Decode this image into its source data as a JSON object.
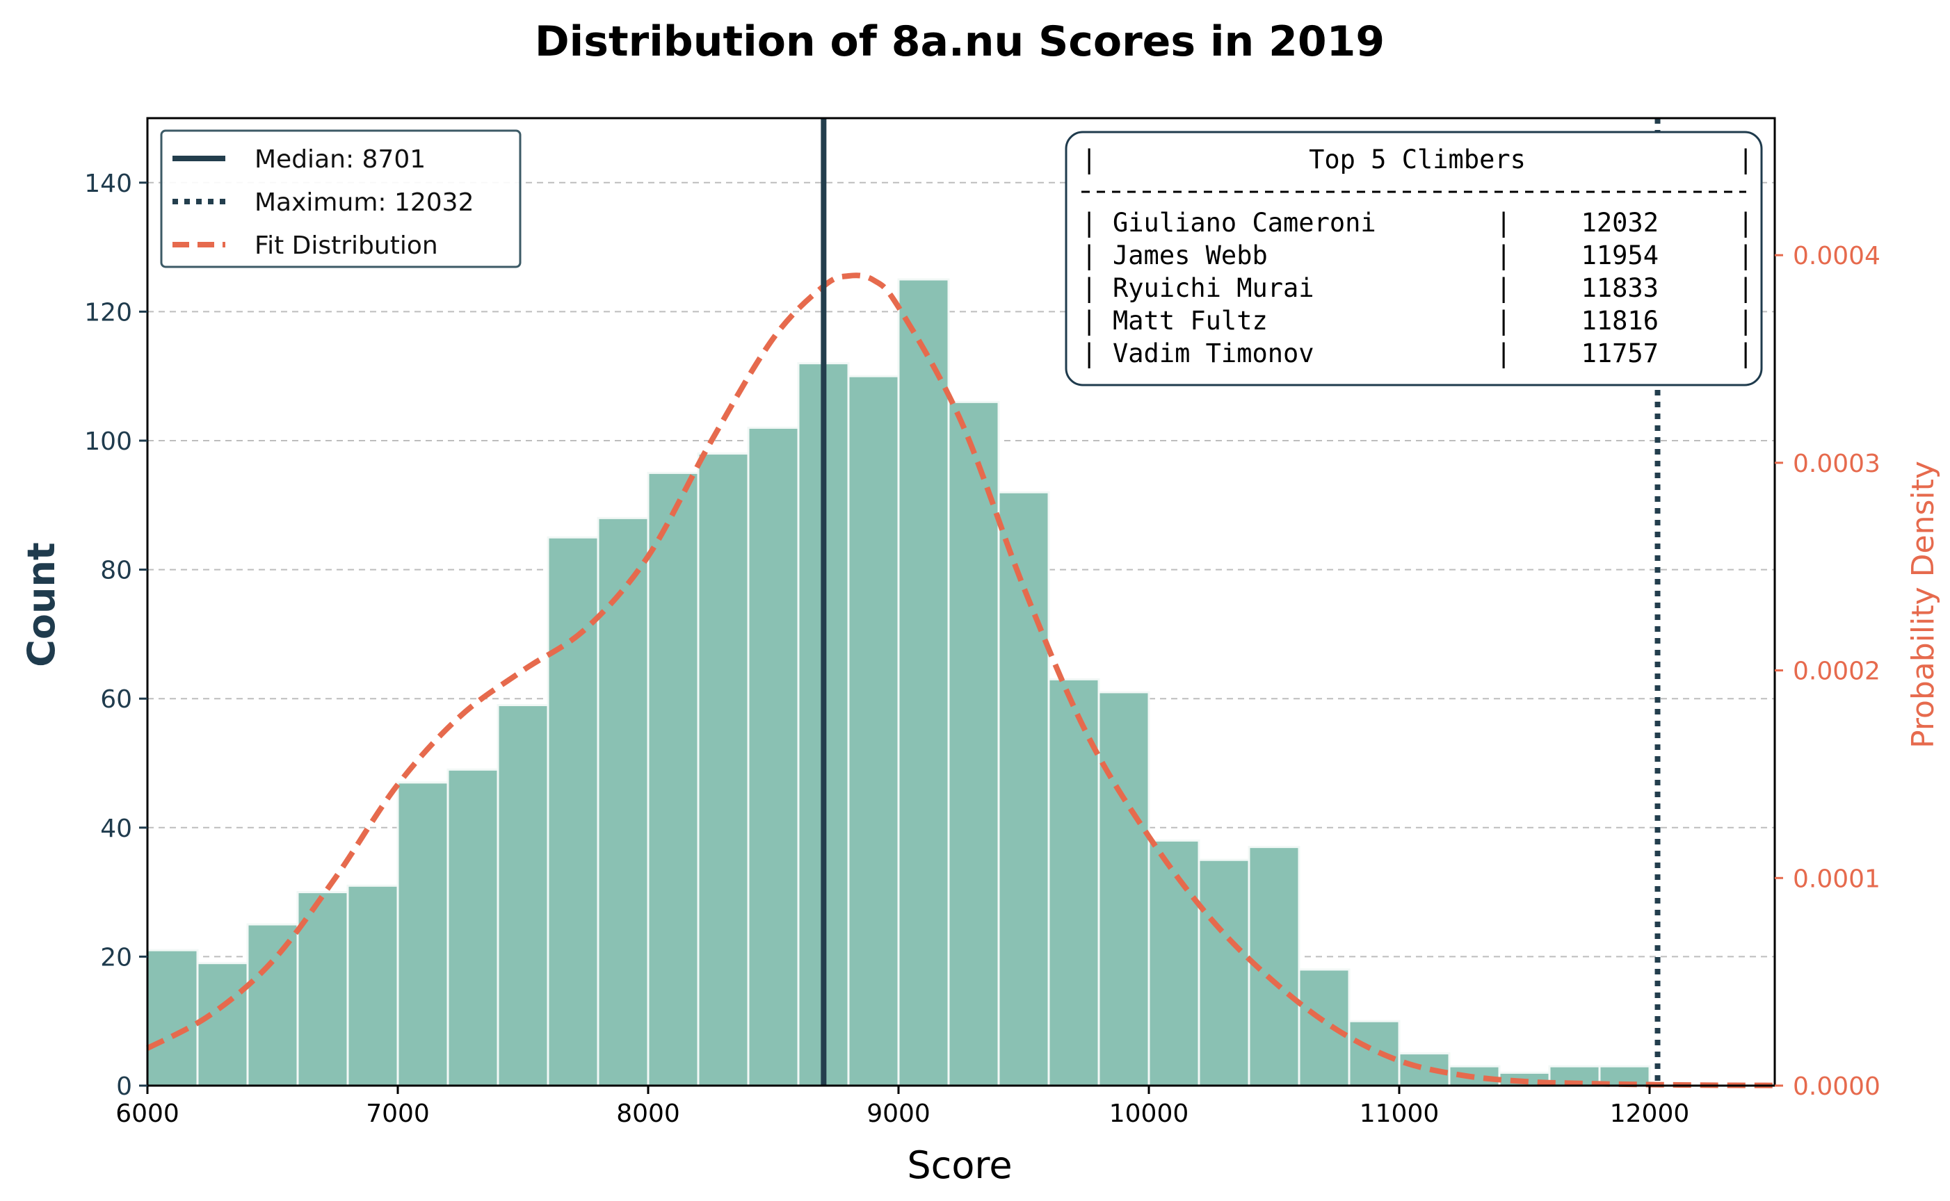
{
  "chart_data": {
    "type": "bar",
    "title": "Distribution of 8a.nu Scores in 2019",
    "xlabel": "Score",
    "ylabel": "Count",
    "y2label": "Probability Density",
    "xlim": [
      6000,
      12500
    ],
    "ylim": [
      0,
      150
    ],
    "y2lim": [
      0,
      0.000466
    ],
    "x_ticks": [
      6000,
      7000,
      8000,
      9000,
      10000,
      11000,
      12000
    ],
    "y_ticks": [
      0,
      20,
      40,
      60,
      80,
      100,
      120,
      140
    ],
    "y2_ticks": [
      "0.0000",
      "0.0001",
      "0.0002",
      "0.0003",
      "0.0004"
    ],
    "grid": "horizontal dashed",
    "bins": [
      {
        "x0": 6000,
        "x1": 6200,
        "count": 21
      },
      {
        "x0": 6200,
        "x1": 6400,
        "count": 19
      },
      {
        "x0": 6400,
        "x1": 6600,
        "count": 25
      },
      {
        "x0": 6600,
        "x1": 6800,
        "count": 30
      },
      {
        "x0": 6800,
        "x1": 7000,
        "count": 31
      },
      {
        "x0": 7000,
        "x1": 7200,
        "count": 47
      },
      {
        "x0": 7200,
        "x1": 7400,
        "count": 49
      },
      {
        "x0": 7400,
        "x1": 7600,
        "count": 59
      },
      {
        "x0": 7600,
        "x1": 7800,
        "count": 85
      },
      {
        "x0": 7800,
        "x1": 8000,
        "count": 88
      },
      {
        "x0": 8000,
        "x1": 8200,
        "count": 95
      },
      {
        "x0": 8200,
        "x1": 8400,
        "count": 98
      },
      {
        "x0": 8400,
        "x1": 8600,
        "count": 102
      },
      {
        "x0": 8600,
        "x1": 8800,
        "count": 112
      },
      {
        "x0": 8800,
        "x1": 9000,
        "count": 110
      },
      {
        "x0": 9000,
        "x1": 9200,
        "count": 125
      },
      {
        "x0": 9200,
        "x1": 9400,
        "count": 106
      },
      {
        "x0": 9400,
        "x1": 9600,
        "count": 92
      },
      {
        "x0": 9600,
        "x1": 9800,
        "count": 63
      },
      {
        "x0": 9800,
        "x1": 10000,
        "count": 61
      },
      {
        "x0": 10000,
        "x1": 10200,
        "count": 38
      },
      {
        "x0": 10200,
        "x1": 10400,
        "count": 35
      },
      {
        "x0": 10400,
        "x1": 10600,
        "count": 37
      },
      {
        "x0": 10600,
        "x1": 10800,
        "count": 18
      },
      {
        "x0": 10800,
        "x1": 11000,
        "count": 10
      },
      {
        "x0": 11000,
        "x1": 11200,
        "count": 5
      },
      {
        "x0": 11200,
        "x1": 11400,
        "count": 3
      },
      {
        "x0": 11400,
        "x1": 11600,
        "count": 2
      },
      {
        "x0": 11600,
        "x1": 11800,
        "count": 3
      },
      {
        "x0": 11800,
        "x1": 12000,
        "count": 3
      }
    ],
    "density_curve": {
      "x": [
        6000,
        6250,
        6500,
        6750,
        7000,
        7250,
        7500,
        7750,
        8000,
        8250,
        8500,
        8700,
        8800,
        8900,
        9000,
        9250,
        9500,
        9750,
        10000,
        10250,
        10500,
        10750,
        11000,
        11250,
        11500,
        11750,
        12000,
        12250,
        12500
      ],
      "y": [
        1.8e-05,
        3.4e-05,
        6e-05,
        0.0001,
        0.000145,
        0.000178,
        0.0002,
        0.00022,
        0.000255,
        0.00031,
        0.00036,
        0.000385,
        0.00039,
        0.000388,
        0.000375,
        0.00032,
        0.00024,
        0.00017,
        0.00012,
        8e-05,
        5e-05,
        2.7e-05,
        1.2e-05,
        5e-06,
        2e-06,
        1e-06,
        5e-07,
        2e-07,
        1e-07
      ]
    },
    "median": 8701,
    "maximum": 12032,
    "legend_position": "upper left",
    "legend": [
      {
        "label": "Median: 8701",
        "style": "solid"
      },
      {
        "label": "Maximum: 12032",
        "style": "dotted"
      },
      {
        "label": "Fit Distribution",
        "style": "dashed"
      }
    ],
    "top_climbers": {
      "header": "Top 5 Climbers",
      "rows": [
        {
          "name": "Giuliano Cameroni",
          "score": 12032
        },
        {
          "name": "James Webb",
          "score": 11954
        },
        {
          "name": "Ryuichi Murai",
          "score": 11833
        },
        {
          "name": "Matt Fultz",
          "score": 11816
        },
        {
          "name": "Vadim Timonov",
          "score": 11757
        }
      ]
    },
    "colors": {
      "bar": "#8ac1b3",
      "bar_edge": "#f2f8f6",
      "line": "#233e4d",
      "fit": "#e66a4d",
      "left_axis": "#1f3b4d",
      "right_axis": "#e66a4d",
      "grid": "#bdbdbd"
    }
  }
}
